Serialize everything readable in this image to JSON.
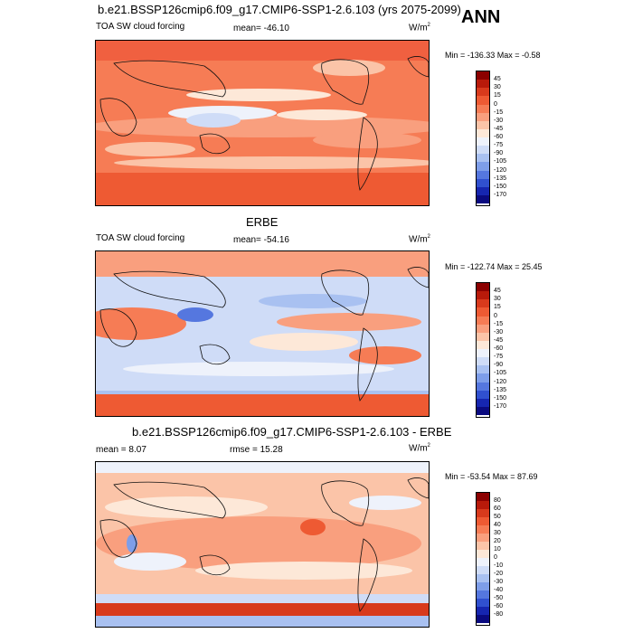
{
  "header": {
    "ann_label": "ANN"
  },
  "panels": [
    {
      "title": "b.e21.BSSP126cmip6.f09_g17.CMIP6-SSP1-2.6.103 (yrs 2075-2099)",
      "left_label": "TOA SW cloud forcing",
      "center_label": "mean= -46.10",
      "units": "W/m",
      "units_sup": "2",
      "minmax": "Min = -136.33 Max =  -0.58",
      "colorbar": {
        "labels": [
          "45",
          "30",
          "15",
          "0",
          "-15",
          "-30",
          "-45",
          "-60",
          "-75",
          "-90",
          "-105",
          "-120",
          "-135",
          "-150",
          "-170"
        ],
        "colors": [
          "#8b0000",
          "#b81a0a",
          "#d83a1c",
          "#ee5a33",
          "#f67c55",
          "#f99f7e",
          "#fbc4a8",
          "#fde8d8",
          "#eef2fb",
          "#cfdcf7",
          "#a9c1f1",
          "#7e9ee9",
          "#5577df",
          "#3050cf",
          "#1626b0",
          "#0a0a80"
        ]
      }
    },
    {
      "title": "ERBE",
      "left_label": "TOA SW cloud forcing",
      "center_label": "mean= -54.16",
      "units": "W/m",
      "units_sup": "2",
      "minmax": "Min = -122.74 Max =  25.45",
      "colorbar": {
        "labels": [
          "45",
          "30",
          "15",
          "0",
          "-15",
          "-30",
          "-45",
          "-60",
          "-75",
          "-90",
          "-105",
          "-120",
          "-135",
          "-150",
          "-170"
        ],
        "colors": [
          "#8b0000",
          "#b81a0a",
          "#d83a1c",
          "#ee5a33",
          "#f67c55",
          "#f99f7e",
          "#fbc4a8",
          "#fde8d8",
          "#eef2fb",
          "#cfdcf7",
          "#a9c1f1",
          "#7e9ee9",
          "#5577df",
          "#3050cf",
          "#1626b0",
          "#0a0a80"
        ]
      }
    },
    {
      "title": "b.e21.BSSP126cmip6.f09_g17.CMIP6-SSP1-2.6.103 - ERBE",
      "left_label": "mean =   8.07",
      "center_label": "rmse =  15.28",
      "units": "W/m",
      "units_sup": "2",
      "minmax": "Min = -53.54 Max =  87.69",
      "colorbar": {
        "labels": [
          "80",
          "60",
          "50",
          "40",
          "30",
          "20",
          "10",
          "0",
          "-10",
          "-20",
          "-30",
          "-40",
          "-50",
          "-60",
          "-80"
        ],
        "colors": [
          "#8b0000",
          "#b81a0a",
          "#d83a1c",
          "#ee5a33",
          "#f67c55",
          "#f99f7e",
          "#fbc4a8",
          "#fde8d8",
          "#eef2fb",
          "#cfdcf7",
          "#a9c1f1",
          "#7e9ee9",
          "#5577df",
          "#3050cf",
          "#1626b0",
          "#0a0a80"
        ]
      }
    }
  ]
}
